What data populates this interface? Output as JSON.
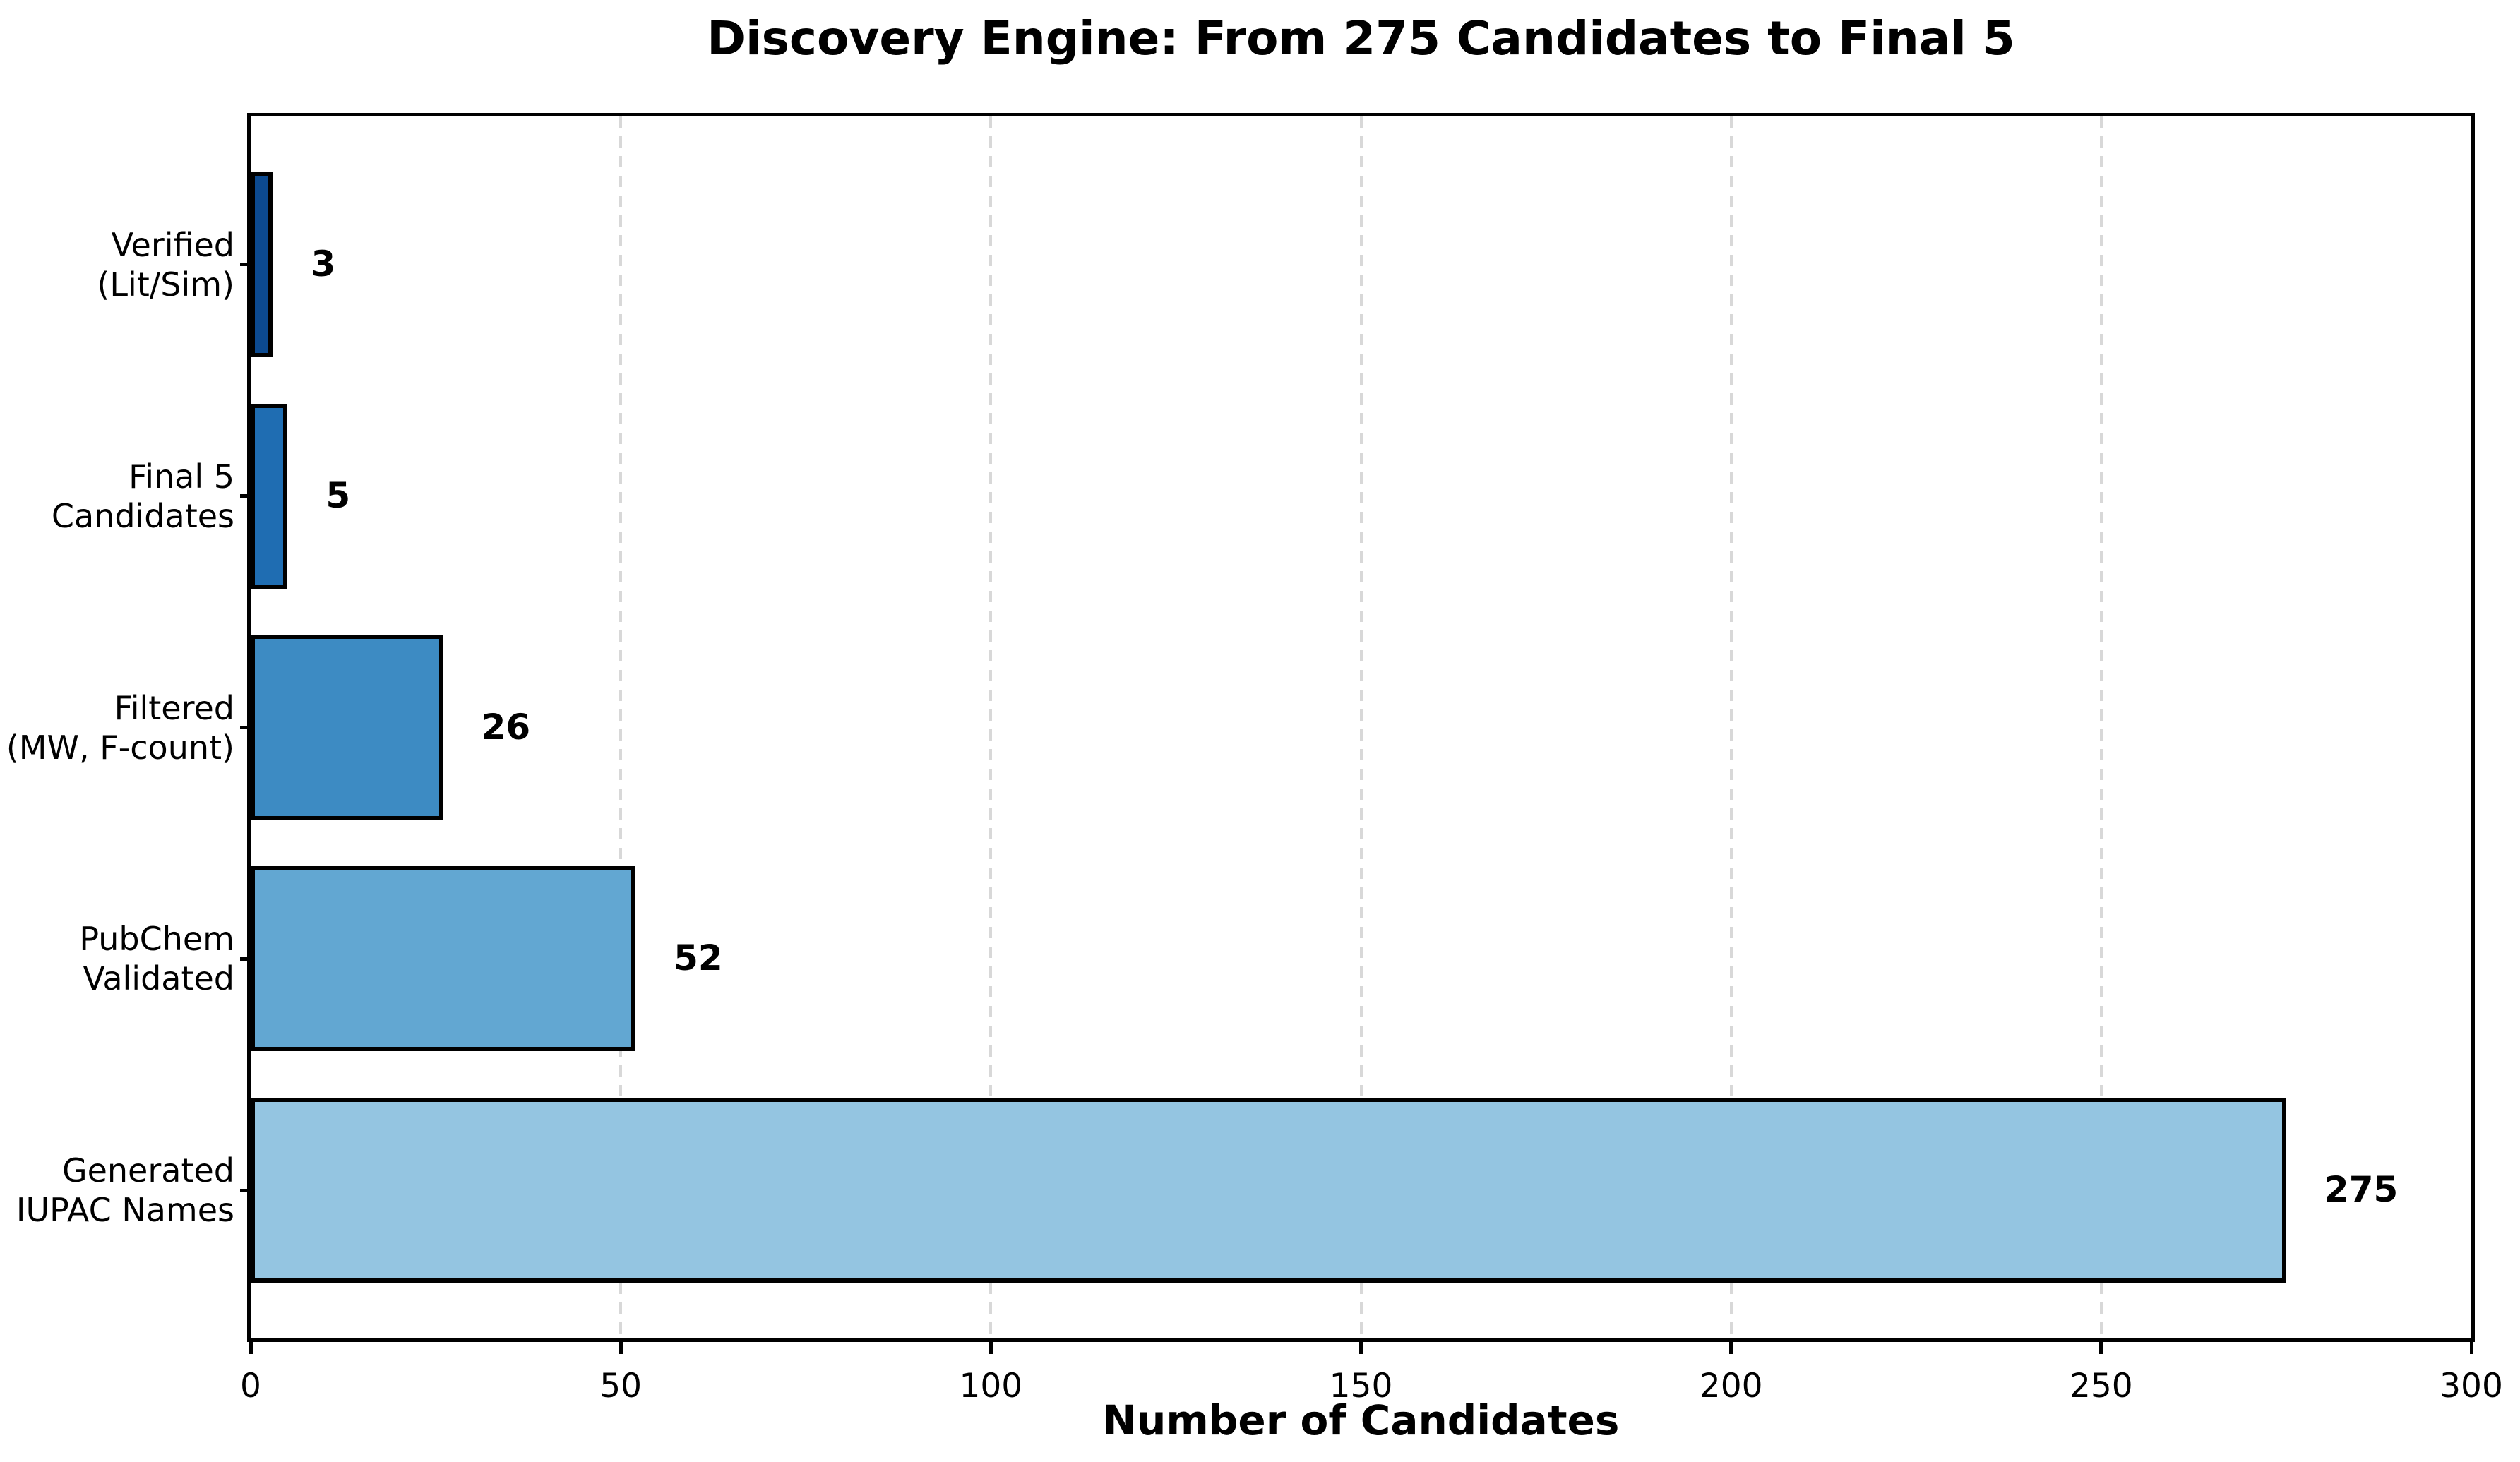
{
  "title": "Discovery Engine: From 275 Candidates to Final 5",
  "chart_data": {
    "type": "bar",
    "orientation": "horizontal",
    "order": "top-to-bottom",
    "title": "Discovery Engine: From 275 Candidates to Final 5",
    "xlabel": "Number of Candidates",
    "ylabel": "",
    "xlim": [
      0,
      300
    ],
    "xticks": [
      0,
      50,
      100,
      150,
      200,
      250,
      300
    ],
    "xtick_labels": [
      "0",
      "50",
      "100",
      "150",
      "200",
      "250",
      "300"
    ],
    "grid": {
      "axis": "x",
      "linestyle": "dashed",
      "color": "#d8d8d8"
    },
    "legend": "none",
    "categories": [
      "Verified\n(Lit/Sim)",
      "Final 5\nCandidates",
      "Filtered\n(MW, F-count)",
      "PubChem\nValidated",
      "Generated\nIUPAC Names"
    ],
    "values": [
      3,
      5,
      26,
      52,
      275
    ],
    "value_labels": [
      "3",
      "5",
      "26",
      "52",
      "275"
    ],
    "bar_colors": [
      "#0c4a90",
      "#1f6db2",
      "#3d8bc3",
      "#62a7d2",
      "#94c5e1"
    ],
    "bar_edge_color": "#000000",
    "spine_color": "#000000"
  }
}
